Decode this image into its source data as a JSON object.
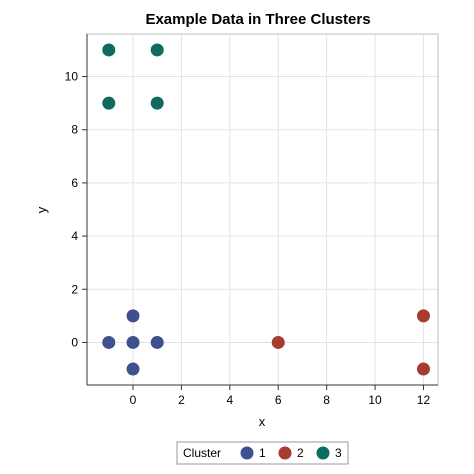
{
  "chart_data": {
    "type": "scatter",
    "title": "Example Data in Three Clusters",
    "xlabel": "x",
    "ylabel": "y",
    "xlim": [
      -1.9,
      12.6
    ],
    "ylim": [
      -1.6,
      11.6
    ],
    "x_ticks": [
      0,
      2,
      4,
      6,
      8,
      10,
      12
    ],
    "y_ticks": [
      0,
      2,
      4,
      6,
      8,
      10
    ],
    "grid": true,
    "legend": {
      "title": "Cluster",
      "placement": "bottom",
      "entries": [
        "1",
        "2",
        "3"
      ]
    },
    "series": [
      {
        "name": "1",
        "color": "#3f4f8f",
        "points": [
          [
            -1,
            0
          ],
          [
            0,
            1
          ],
          [
            0,
            0
          ],
          [
            1,
            0
          ],
          [
            0,
            -1
          ]
        ]
      },
      {
        "name": "2",
        "color": "#a63b2f",
        "points": [
          [
            6,
            0
          ],
          [
            12,
            1
          ],
          [
            12,
            -1
          ]
        ]
      },
      {
        "name": "3",
        "color": "#0f6b5f",
        "points": [
          [
            -1,
            11
          ],
          [
            1,
            11
          ],
          [
            -1,
            9
          ],
          [
            1,
            9
          ]
        ]
      }
    ]
  }
}
